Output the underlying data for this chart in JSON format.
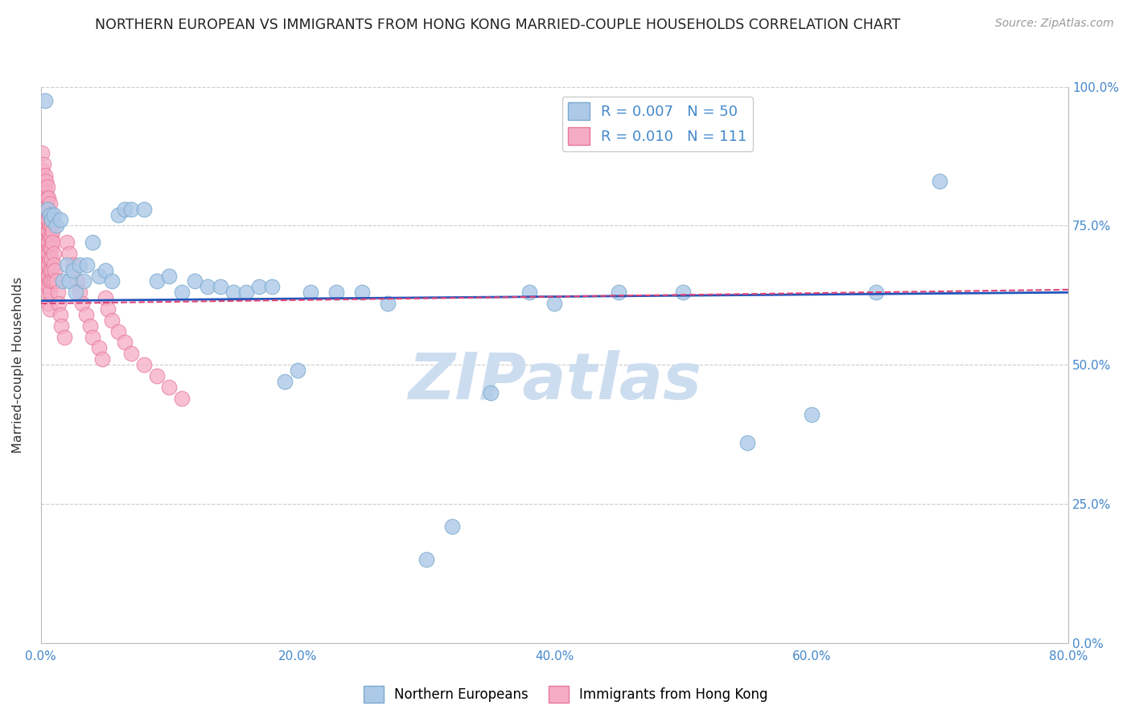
{
  "title": "NORTHERN EUROPEAN VS IMMIGRANTS FROM HONG KONG MARRIED-COUPLE HOUSEHOLDS CORRELATION CHART",
  "source": "Source: ZipAtlas.com",
  "ylabel": "Married-couple Households",
  "x_tick_labels": [
    "0.0%",
    "20.0%",
    "40.0%",
    "60.0%",
    "80.0%"
  ],
  "x_tick_values": [
    0.0,
    0.2,
    0.4,
    0.6,
    0.8
  ],
  "y_tick_labels": [
    "0.0%",
    "25.0%",
    "50.0%",
    "75.0%",
    "100.0%"
  ],
  "y_tick_values": [
    0.0,
    0.25,
    0.5,
    0.75,
    1.0
  ],
  "xlim": [
    0.0,
    0.8
  ],
  "ylim": [
    0.0,
    1.0
  ],
  "blue_R": 0.007,
  "blue_N": 50,
  "pink_R": 0.01,
  "pink_N": 111,
  "blue_color": "#adc9e8",
  "pink_color": "#f5adc5",
  "blue_edge": "#7aaace",
  "pink_edge": "#e87898",
  "trend_blue": "#2255bb",
  "trend_pink": "#dd4477",
  "watermark": "ZIPatlas",
  "watermark_color": "#cdddf0",
  "legend_label_blue": "Northern Europeans",
  "legend_label_pink": "Immigrants from Hong Kong",
  "blue_x": [
    0.003,
    0.005,
    0.007,
    0.008,
    0.01,
    0.012,
    0.015,
    0.017,
    0.02,
    0.022,
    0.025,
    0.027,
    0.03,
    0.033,
    0.036,
    0.04,
    0.045,
    0.05,
    0.055,
    0.06,
    0.065,
    0.07,
    0.08,
    0.09,
    0.1,
    0.11,
    0.12,
    0.13,
    0.14,
    0.15,
    0.16,
    0.17,
    0.18,
    0.19,
    0.2,
    0.21,
    0.23,
    0.25,
    0.27,
    0.3,
    0.32,
    0.35,
    0.38,
    0.4,
    0.45,
    0.5,
    0.55,
    0.6,
    0.65,
    0.7
  ],
  "blue_y": [
    0.975,
    0.78,
    0.77,
    0.76,
    0.77,
    0.75,
    0.76,
    0.65,
    0.68,
    0.65,
    0.67,
    0.63,
    0.68,
    0.65,
    0.68,
    0.72,
    0.66,
    0.67,
    0.65,
    0.77,
    0.78,
    0.78,
    0.78,
    0.65,
    0.66,
    0.63,
    0.65,
    0.64,
    0.64,
    0.63,
    0.63,
    0.64,
    0.64,
    0.47,
    0.49,
    0.63,
    0.63,
    0.63,
    0.61,
    0.15,
    0.21,
    0.45,
    0.63,
    0.61,
    0.63,
    0.63,
    0.36,
    0.41,
    0.63,
    0.83
  ],
  "pink_x": [
    0.001,
    0.001,
    0.001,
    0.001,
    0.001,
    0.001,
    0.001,
    0.001,
    0.001,
    0.001,
    0.002,
    0.002,
    0.002,
    0.002,
    0.002,
    0.002,
    0.002,
    0.002,
    0.002,
    0.002,
    0.003,
    0.003,
    0.003,
    0.003,
    0.003,
    0.003,
    0.003,
    0.003,
    0.003,
    0.003,
    0.004,
    0.004,
    0.004,
    0.004,
    0.004,
    0.004,
    0.004,
    0.004,
    0.004,
    0.004,
    0.005,
    0.005,
    0.005,
    0.005,
    0.005,
    0.005,
    0.005,
    0.005,
    0.005,
    0.005,
    0.006,
    0.006,
    0.006,
    0.006,
    0.006,
    0.006,
    0.006,
    0.006,
    0.006,
    0.006,
    0.007,
    0.007,
    0.007,
    0.007,
    0.007,
    0.007,
    0.007,
    0.007,
    0.007,
    0.007,
    0.008,
    0.008,
    0.008,
    0.008,
    0.008,
    0.008,
    0.008,
    0.009,
    0.009,
    0.009,
    0.01,
    0.01,
    0.01,
    0.011,
    0.012,
    0.013,
    0.014,
    0.015,
    0.016,
    0.018,
    0.02,
    0.022,
    0.025,
    0.028,
    0.03,
    0.032,
    0.035,
    0.038,
    0.04,
    0.045,
    0.048,
    0.05,
    0.052,
    0.055,
    0.06,
    0.065,
    0.07,
    0.08,
    0.09,
    0.1,
    0.11
  ],
  "pink_y": [
    0.88,
    0.85,
    0.82,
    0.8,
    0.78,
    0.76,
    0.74,
    0.72,
    0.7,
    0.68,
    0.86,
    0.83,
    0.8,
    0.78,
    0.76,
    0.74,
    0.72,
    0.7,
    0.68,
    0.65,
    0.84,
    0.82,
    0.8,
    0.78,
    0.76,
    0.74,
    0.72,
    0.7,
    0.68,
    0.65,
    0.83,
    0.81,
    0.79,
    0.77,
    0.75,
    0.73,
    0.71,
    0.69,
    0.67,
    0.64,
    0.82,
    0.8,
    0.78,
    0.76,
    0.74,
    0.72,
    0.7,
    0.68,
    0.66,
    0.63,
    0.8,
    0.78,
    0.76,
    0.74,
    0.72,
    0.7,
    0.68,
    0.66,
    0.64,
    0.61,
    0.79,
    0.77,
    0.75,
    0.73,
    0.71,
    0.69,
    0.67,
    0.65,
    0.63,
    0.6,
    0.77,
    0.75,
    0.73,
    0.71,
    0.69,
    0.67,
    0.65,
    0.76,
    0.74,
    0.72,
    0.7,
    0.68,
    0.65,
    0.67,
    0.65,
    0.63,
    0.61,
    0.59,
    0.57,
    0.55,
    0.72,
    0.7,
    0.68,
    0.65,
    0.63,
    0.61,
    0.59,
    0.57,
    0.55,
    0.53,
    0.51,
    0.62,
    0.6,
    0.58,
    0.56,
    0.54,
    0.52,
    0.5,
    0.48,
    0.46,
    0.44
  ],
  "blue_trend_x0": 0.0,
  "blue_trend_x1": 0.8,
  "blue_trend_y0": 0.615,
  "blue_trend_y1": 0.63,
  "pink_trend_x0": 0.0,
  "pink_trend_x1": 0.8,
  "pink_trend_y0": 0.61,
  "pink_trend_y1": 0.635
}
